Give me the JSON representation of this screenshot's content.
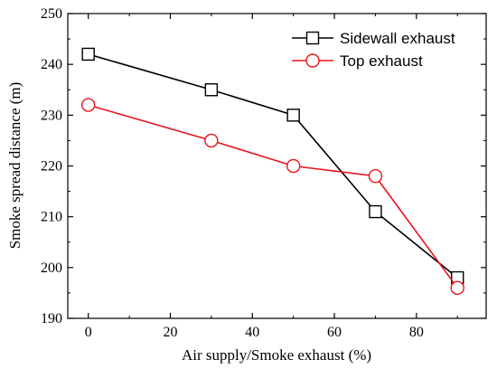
{
  "chart_data": {
    "type": "line",
    "xlabel": "Air supply/Smoke exhaust (%)",
    "ylabel": "Smoke spread distance (m)",
    "xlim": [
      -5,
      97
    ],
    "ylim": [
      190,
      250
    ],
    "xticks": [
      0,
      20,
      40,
      60,
      80
    ],
    "yticks": [
      190,
      200,
      210,
      220,
      230,
      240,
      250
    ],
    "x": [
      0,
      30,
      50,
      70,
      90
    ],
    "series": [
      {
        "name": "Sidewall exhaust",
        "color": "#000000",
        "marker": "square",
        "values": [
          242,
          235,
          230,
          211,
          198
        ]
      },
      {
        "name": "Top exhaust",
        "color": "#e8141b",
        "marker": "circle",
        "values": [
          232,
          225,
          220,
          218,
          196
        ]
      }
    ],
    "legend_position": "top-right",
    "grid": false
  }
}
